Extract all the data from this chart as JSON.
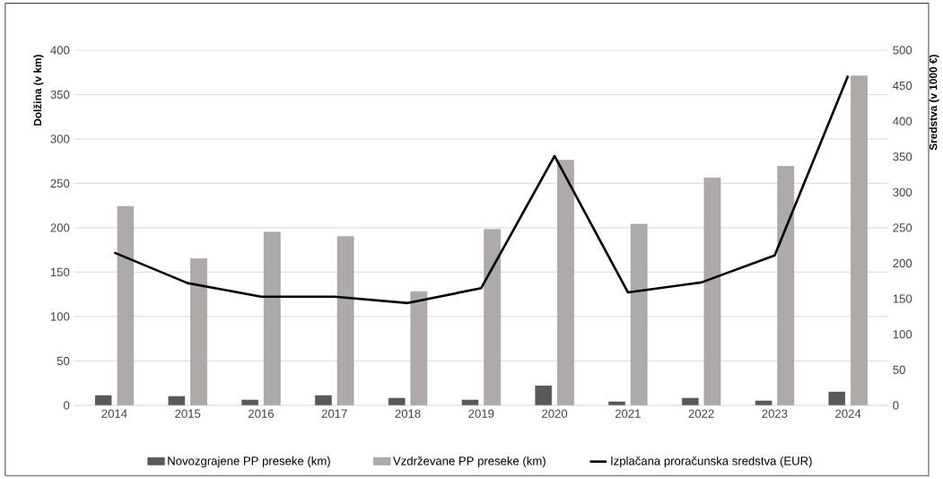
{
  "chart_data": {
    "type": "bar",
    "categories": [
      "2014",
      "2015",
      "2016",
      "2017",
      "2018",
      "2019",
      "2020",
      "2021",
      "2022",
      "2023",
      "2024"
    ],
    "ylabel": "Dolžina (v km)",
    "y2label": "Sredstva (v 1000 €)",
    "ylim": [
      0,
      400
    ],
    "yticks": [
      0,
      50,
      100,
      150,
      200,
      250,
      300,
      350,
      400
    ],
    "y2lim": [
      0,
      500
    ],
    "y2ticks": [
      0,
      50,
      100,
      150,
      200,
      250,
      300,
      350,
      400,
      450,
      500
    ],
    "grid": "y",
    "legend": "bottom",
    "series": [
      {
        "name": "Novozgrajene PP preseke (km)",
        "color": "#595959",
        "values": [
          11,
          10,
          6,
          11,
          8,
          6,
          22,
          4,
          8,
          5,
          15
        ]
      },
      {
        "name": "Vzdrževane PP preseke (km)",
        "color": "#aeaaaa",
        "values": [
          224,
          165,
          195,
          190,
          128,
          198,
          276,
          204,
          256,
          269,
          371
        ]
      },
      {
        "name": "Izplačana proračunska sredstva (EUR)",
        "color": "#000000",
        "type": "line",
        "axis": "y2",
        "values": [
          215,
          172,
          153,
          153,
          144,
          165,
          351,
          159,
          173,
          211,
          464
        ]
      }
    ]
  }
}
